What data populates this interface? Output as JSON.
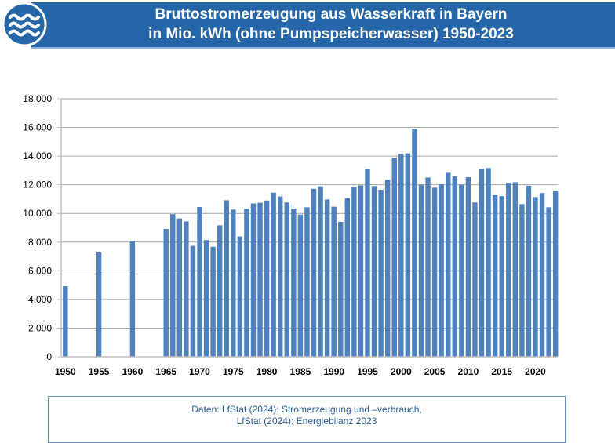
{
  "header": {
    "title_line1": "Bruttostromerzeugung aus Wasserkraft in Bayern",
    "title_line2": "in Mio. kWh (ohne Pumpspeicherwasser) 1950-2023",
    "logo_icon": "water-waves-icon",
    "color": "#2466a8"
  },
  "footer": {
    "line1": "Daten: LfStat (2024): Stromerzeugung und –verbrauch,",
    "line2": "LfStat (2024): Energiebilanz 2023"
  },
  "chart_data": {
    "type": "bar",
    "title": "Bruttostromerzeugung aus Wasserkraft in Bayern in Mio. kWh (ohne Pumpspeicherwasser) 1950-2023",
    "xlabel": "",
    "ylabel": "",
    "ylim": [
      0,
      18000
    ],
    "xlim": [
      1950,
      2023
    ],
    "grid": true,
    "legend": "none",
    "bar_color": "#4f81bd",
    "y_ticks": [
      0,
      2000,
      4000,
      6000,
      8000,
      10000,
      12000,
      14000,
      16000,
      18000
    ],
    "y_tick_labels": [
      "0",
      "2.000",
      "4.000",
      "6.000",
      "8.000",
      "10.000",
      "12.000",
      "14.000",
      "16.000",
      "18.000"
    ],
    "x_tick_labels": [
      "1950",
      "1955",
      "1960",
      "1965",
      "1970",
      "1975",
      "1980",
      "1985",
      "1990",
      "1995",
      "2000",
      "2005",
      "2010",
      "2015",
      "2020"
    ],
    "categories": [
      1950,
      1955,
      1960,
      1965,
      1966,
      1967,
      1968,
      1969,
      1970,
      1971,
      1972,
      1973,
      1974,
      1975,
      1976,
      1977,
      1978,
      1979,
      1980,
      1981,
      1982,
      1983,
      1984,
      1985,
      1986,
      1987,
      1988,
      1989,
      1990,
      1991,
      1992,
      1993,
      1994,
      1995,
      1996,
      1997,
      1998,
      1999,
      2000,
      2001,
      2002,
      2003,
      2004,
      2005,
      2006,
      2007,
      2008,
      2009,
      2010,
      2011,
      2012,
      2013,
      2014,
      2015,
      2016,
      2017,
      2018,
      2019,
      2020,
      2021,
      2022,
      2023
    ],
    "values": [
      4920,
      7280,
      8100,
      8920,
      9950,
      9650,
      9440,
      7740,
      10450,
      8140,
      7670,
      9170,
      10920,
      10270,
      8390,
      10340,
      10700,
      10740,
      10900,
      11450,
      11180,
      10760,
      10340,
      9920,
      10430,
      11720,
      11890,
      10980,
      10470,
      9410,
      11070,
      11830,
      11960,
      13110,
      11910,
      11650,
      12350,
      13890,
      14150,
      14190,
      15900,
      12000,
      12510,
      11800,
      12030,
      12840,
      12580,
      12000,
      12530,
      10760,
      13110,
      13170,
      11270,
      11210,
      12140,
      12180,
      10650,
      11930,
      11140,
      11420,
      10430,
      11580
    ]
  }
}
